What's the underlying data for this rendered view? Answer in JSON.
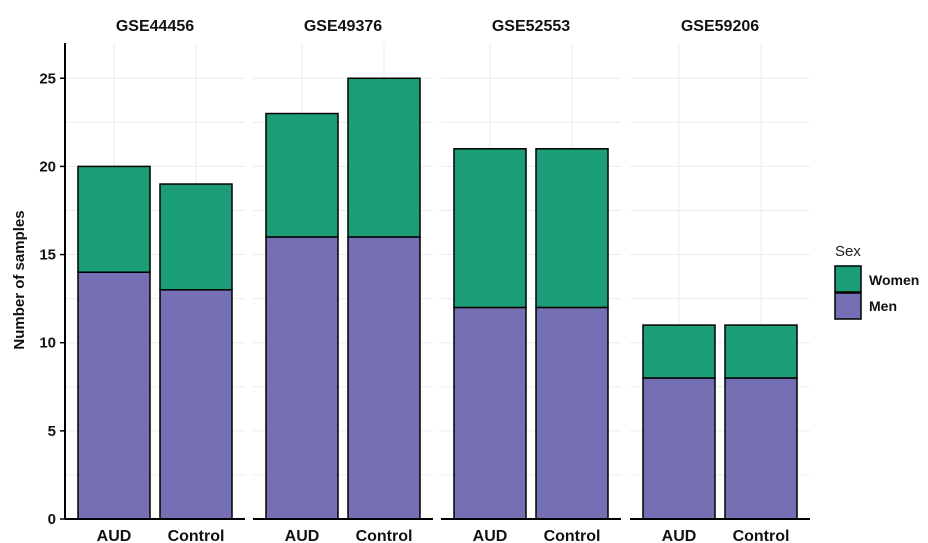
{
  "chart_data": {
    "type": "bar",
    "stacked": true,
    "ylabel": "Number of samples",
    "xlabel": "",
    "ylim": [
      0,
      27
    ],
    "yticks": [
      0,
      5,
      10,
      15,
      20,
      25
    ],
    "grid": true,
    "legend": {
      "title": "Sex",
      "placement": "right",
      "entries": [
        {
          "name": "Women",
          "color": "#1b9e77"
        },
        {
          "name": "Men",
          "color": "#7570b3"
        }
      ]
    },
    "panels": [
      {
        "title": "GSE44456",
        "categories": [
          "AUD",
          "Control"
        ],
        "series": [
          {
            "name": "Men",
            "values": [
              14,
              13
            ]
          },
          {
            "name": "Women",
            "values": [
              6,
              6
            ]
          }
        ]
      },
      {
        "title": "GSE49376",
        "categories": [
          "AUD",
          "Control"
        ],
        "series": [
          {
            "name": "Men",
            "values": [
              16,
              16
            ]
          },
          {
            "name": "Women",
            "values": [
              7,
              9
            ]
          }
        ]
      },
      {
        "title": "GSE52553",
        "categories": [
          "AUD",
          "Control"
        ],
        "series": [
          {
            "name": "Men",
            "values": [
              12,
              12
            ]
          },
          {
            "name": "Women",
            "values": [
              9,
              9
            ]
          }
        ]
      },
      {
        "title": "GSE59206",
        "categories": [
          "AUD",
          "Control"
        ],
        "series": [
          {
            "name": "Men",
            "values": [
              8,
              8
            ]
          },
          {
            "name": "Women",
            "values": [
              3,
              3
            ]
          }
        ]
      }
    ]
  }
}
